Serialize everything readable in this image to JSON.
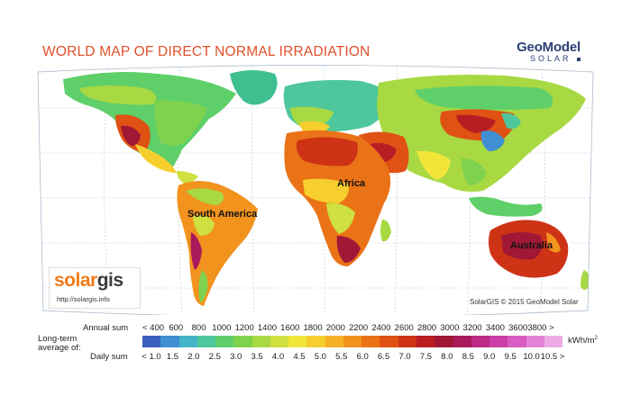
{
  "map": {
    "title": "WORLD MAP OF DIRECT NORMAL IRRADIATION",
    "brand": {
      "name": "GeoModel",
      "sub": "SOLAR"
    },
    "regions": [
      "Africa",
      "South America",
      "Australia"
    ],
    "logo": {
      "word_a": "solar",
      "word_b": "gis",
      "url": "http://solargis.info"
    },
    "copyright": "SolarGIS © 2015 GeoModel Solar"
  },
  "legend": {
    "annual_label": "Annual sum",
    "longterm_label_1": "Long-term",
    "longterm_label_2": "average of:",
    "daily_label": "Daily sum",
    "annual_ticks": [
      "< 400",
      "600",
      "800",
      "1000",
      "1200",
      "1400",
      "1600",
      "1800",
      "2000",
      "2200",
      "2400",
      "2600",
      "2800",
      "3000",
      "3200",
      "3400",
      "3600",
      "3800 >"
    ],
    "daily_ticks": [
      "< 1.0",
      "1.5",
      "2.0",
      "2.5",
      "3.0",
      "3.5",
      "4.0",
      "4.5",
      "5.0",
      "5.5",
      "6.0",
      "6.5",
      "7.0",
      "7.5",
      "8.0",
      "8.5",
      "9.0",
      "9.5",
      "10.0",
      "10.5 >"
    ],
    "unit": "kWh/m",
    "unit_sup": "2",
    "colors": [
      "#3b5fc0",
      "#3f8fd2",
      "#45b5c8",
      "#4ec79c",
      "#5fcf6a",
      "#7fd24e",
      "#a8d943",
      "#cfe041",
      "#f2e63a",
      "#f6cf2f",
      "#f5b226",
      "#f2931e",
      "#ea7317",
      "#df5214",
      "#cf3316",
      "#b71d22",
      "#a01836",
      "#a81a5b",
      "#bb2a86",
      "#cc3ea7",
      "#d85cc2",
      "#e283d6",
      "#ecabe6"
    ]
  }
}
